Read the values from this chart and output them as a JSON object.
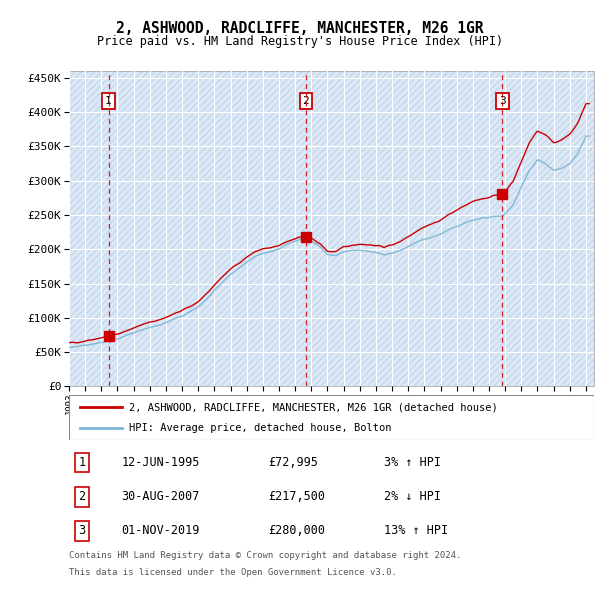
{
  "title": "2, ASHWOOD, RADCLIFFE, MANCHESTER, M26 1GR",
  "subtitle": "Price paid vs. HM Land Registry's House Price Index (HPI)",
  "legend_line1": "2, ASHWOOD, RADCLIFFE, MANCHESTER, M26 1GR (detached house)",
  "legend_line2": "HPI: Average price, detached house, Bolton",
  "table_rows": [
    {
      "num": "1",
      "date": "12-JUN-1995",
      "price": "£72,995",
      "hpi": "3% ↑ HPI"
    },
    {
      "num": "2",
      "date": "30-AUG-2007",
      "price": "£217,500",
      "hpi": "2% ↓ HPI"
    },
    {
      "num": "3",
      "date": "01-NOV-2019",
      "price": "£280,000",
      "hpi": "13% ↑ HPI"
    }
  ],
  "footnote1": "Contains HM Land Registry data © Crown copyright and database right 2024.",
  "footnote2": "This data is licensed under the Open Government Licence v3.0.",
  "sale_prices": [
    72995,
    217500,
    280000
  ],
  "hpi_color": "#7ab4d4",
  "price_color": "#cc0000",
  "vline_color": "#cc0000",
  "ylim": [
    0,
    460000
  ],
  "yticks": [
    0,
    50000,
    100000,
    150000,
    200000,
    250000,
    300000,
    350000,
    400000,
    450000
  ],
  "plot_bg": "#dce8f5",
  "hatch_color": "#c5d8eb"
}
